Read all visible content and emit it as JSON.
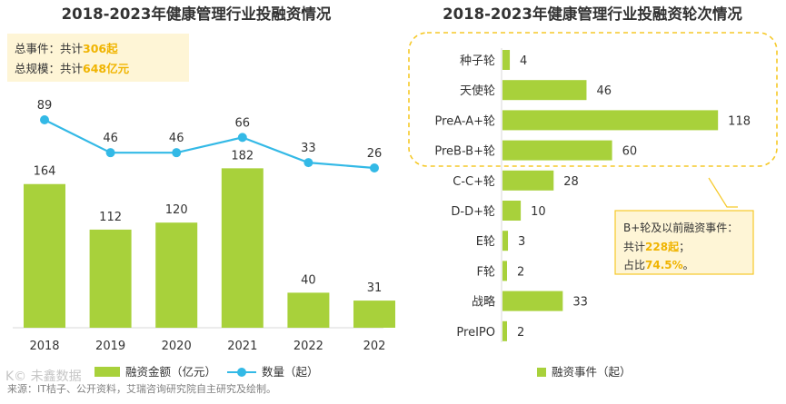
{
  "left": {
    "title": "2018-2023年健康管理行业投融资情况",
    "summary": {
      "line1_prefix": "总事件：共计",
      "line1_value": "306起",
      "line2_prefix": "总规模：共计",
      "line2_value": "648亿元"
    }
  },
  "right": {
    "title": "2018-2023年健康管理行业投融资轮次情况",
    "callout": {
      "line1": "B+轮及以前融资事件：",
      "line2_prefix": "共计",
      "line2_value": "228起",
      "line2_suffix": "；",
      "line3_prefix": "占比",
      "line3_value": "74.5%",
      "line3_suffix": "。"
    }
  },
  "footer": {
    "source": "来源：IT桔子、公开资料，艾瑞咨询研究院自主研究及绘制。",
    "watermark": "K© 未鑫数据"
  },
  "colors": {
    "bar_green": "#a8d13b",
    "line_blue": "#33b9e6",
    "highlight_yellow": "#f6c928",
    "summary_bg": "#fef5d6",
    "callout_bg": "#fef5d6",
    "title_text": "#333333"
  },
  "chart_data": [
    {
      "type": "bar",
      "title": "2018-2023年健康管理行业投融资情况",
      "categories": [
        "2018",
        "2019",
        "2020",
        "2021",
        "2022",
        "202"
      ],
      "series": [
        {
          "name": "融资金额（亿元）",
          "type": "bar",
          "values": [
            164,
            112,
            120,
            182,
            40,
            31
          ]
        },
        {
          "name": "数量（起）",
          "type": "line",
          "values": [
            89,
            46,
            46,
            66,
            33,
            26
          ]
        }
      ],
      "xlabel": "",
      "ylabel": "",
      "legend_position": "bottom",
      "grid": false
    },
    {
      "type": "bar",
      "orientation": "horizontal",
      "title": "2018-2023年健康管理行业投融资轮次情况",
      "categories": [
        "种子轮",
        "天使轮",
        "PreA-A+轮",
        "PreB-B+轮",
        "C-C+轮",
        "D-D+轮",
        "E轮",
        "F轮",
        "战略",
        "PreIPO"
      ],
      "series": [
        {
          "name": "融资事件（起）",
          "values": [
            4,
            46,
            118,
            60,
            28,
            10,
            3,
            2,
            33,
            2
          ]
        }
      ],
      "legend_position": "bottom",
      "grid": false
    }
  ]
}
